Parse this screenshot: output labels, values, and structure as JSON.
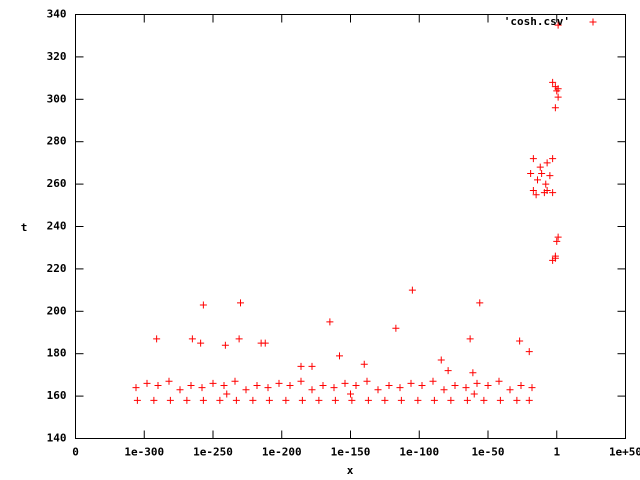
{
  "chart_data": {
    "type": "scatter",
    "x_label": "x",
    "y_label": "t",
    "log_x": true,
    "legend": "top-right",
    "xlim": [
      0,
      1e+50
    ],
    "xticks": [
      0,
      1e-300,
      1e-250,
      1e-200,
      1e-150,
      1e-100,
      1e-50,
      1,
      1e+50
    ],
    "ylim": [
      140,
      340
    ],
    "yticks": [
      140,
      160,
      180,
      200,
      220,
      240,
      260,
      280,
      300,
      320,
      340
    ],
    "series": [
      {
        "name": "'cosh.csv'",
        "color": "#ff0000",
        "x": [
          1e-305,
          1e-293,
          1e-281,
          1e-269,
          1e-257,
          1e-245,
          1e-233,
          1e-221,
          1e-209,
          1e-197,
          1e-185,
          1e-173,
          1e-161,
          1e-149,
          1e-137,
          1e-125,
          1e-113,
          1e-101,
          1e-89,
          1e-77,
          1e-65,
          1e-53,
          1e-41,
          1e-29,
          1e-20,
          1e-306,
          1e-298,
          1e-290,
          1e-282,
          1e-274,
          1e-266,
          1e-258,
          1e-250,
          1e-242,
          1e-234,
          1e-226,
          1e-218,
          1e-210,
          1e-202,
          1e-194,
          1e-186,
          1e-178,
          1e-170,
          1e-162,
          1e-154,
          1e-146,
          1e-138,
          1e-130,
          1e-122,
          1e-114,
          1e-106,
          1e-98,
          1e-90,
          1e-82,
          1e-74,
          1e-66,
          1e-58,
          1e-50,
          1e-42,
          1e-34,
          1e-26,
          1e-18,
          1e-240,
          1e-150,
          1e-60,
          1e-291,
          1e-265,
          1e-259,
          1e-257,
          1e-241,
          1e-231,
          1e-230,
          1e-215,
          1e-212,
          1e-186,
          1e-178,
          1e-165,
          1e-158,
          1e-140,
          1e-117,
          1e-105,
          1e-84,
          1e-79,
          1e-63,
          1e-56,
          1e-61,
          1e-27,
          1e-20,
          1e-19,
          1e-17,
          1e-17,
          1e-15,
          1e-14,
          1e-12,
          1e-11,
          1e-09,
          1e-08,
          1e-07,
          1e-05,
          1e-07,
          0.001,
          0.001,
          0.001,
          0.1,
          0.1,
          1,
          10,
          10,
          0.001,
          0.1,
          1,
          10,
          0.1,
          10
        ],
        "values": [
          158,
          158,
          158,
          158,
          158,
          158,
          158,
          158,
          158,
          158,
          158,
          158,
          158,
          158,
          158,
          158,
          158,
          158,
          158,
          158,
          158,
          158,
          158,
          158,
          158,
          164,
          166,
          165,
          167,
          163,
          165,
          164,
          166,
          165,
          167,
          163,
          165,
          164,
          166,
          165,
          167,
          163,
          165,
          164,
          166,
          165,
          167,
          163,
          165,
          164,
          166,
          165,
          167,
          163,
          165,
          164,
          166,
          165,
          167,
          163,
          165,
          164,
          161,
          161,
          161,
          187,
          187,
          185,
          203,
          184,
          187,
          204,
          185,
          185,
          174,
          174,
          195,
          179,
          175,
          192,
          210,
          177,
          172,
          187,
          204,
          171,
          186,
          181,
          265,
          257,
          272,
          255,
          262,
          268,
          265,
          256,
          260,
          270,
          264,
          257,
          256,
          272,
          308,
          296,
          306,
          304,
          301,
          305,
          224,
          226,
          233,
          235,
          225,
          335
        ]
      }
    ]
  }
}
